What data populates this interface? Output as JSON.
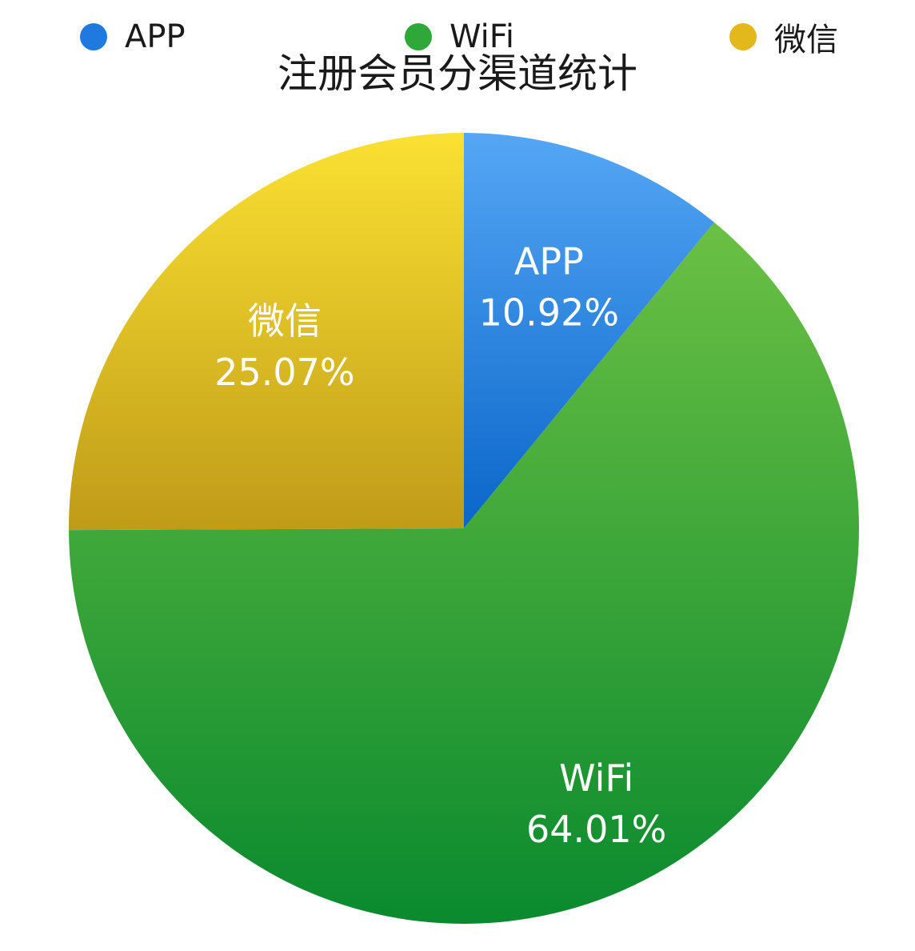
{
  "chart_data": {
    "type": "pie",
    "title": "注册会员分渠道统计",
    "categories": [
      "APP",
      "WiFi",
      "微信"
    ],
    "values": [
      10.92,
      64.01,
      25.07
    ],
    "data_labels": [
      "10.92%",
      "64.01%",
      "25.07%"
    ],
    "legend_position": "top",
    "colors": {
      "APP": [
        "#55a7f5",
        "#0a66c9"
      ],
      "WiFi": [
        "#6bc044",
        "#0a8a2e"
      ],
      "微信": [
        "#fbe132",
        "#bf9b18"
      ]
    },
    "legend_colors": [
      "#1f7ae0",
      "#2fa83a",
      "#e2b81c"
    ]
  }
}
